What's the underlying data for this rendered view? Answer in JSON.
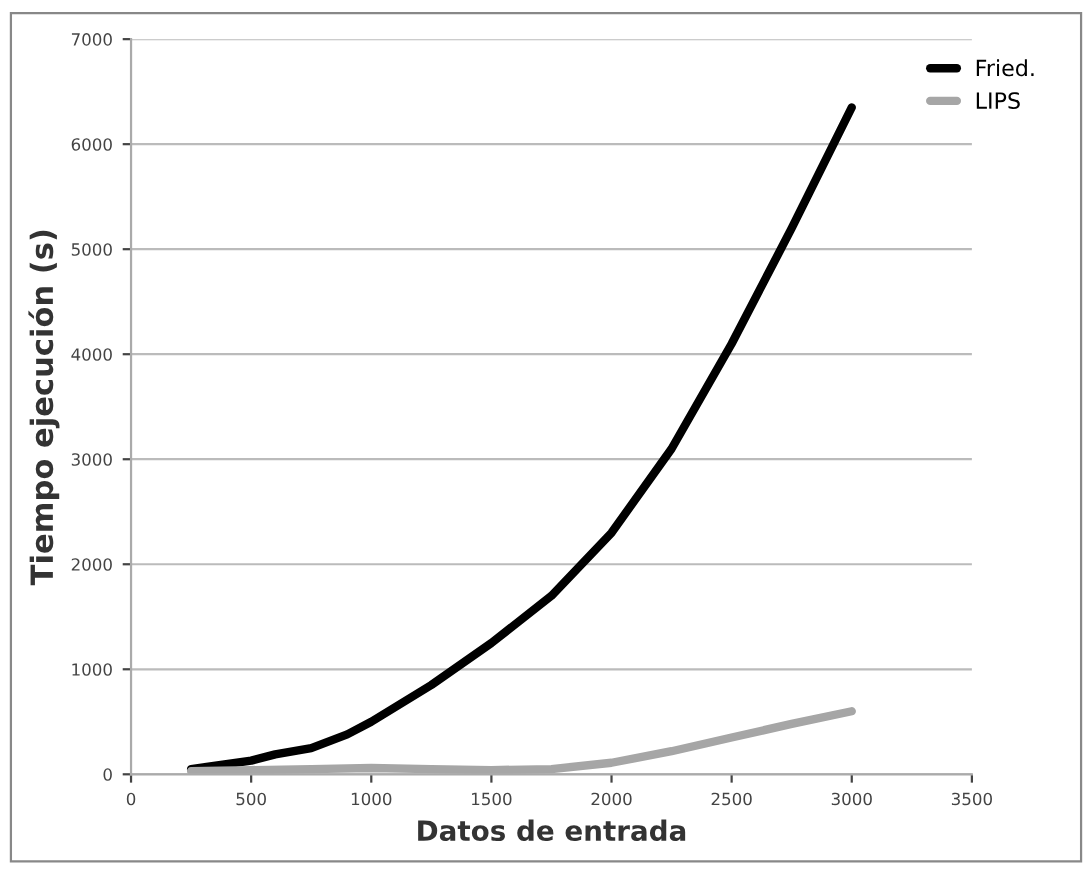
{
  "chart_data": {
    "type": "line",
    "xlabel": "Datos de entrada",
    "ylabel": "Tiempo ejecución (s)",
    "xlim": [
      0,
      3500
    ],
    "xticks": [
      0,
      500,
      1000,
      1500,
      2000,
      2500,
      3000,
      3500
    ],
    "ylim": [
      0,
      7000
    ],
    "yticks": [
      0,
      1000,
      2000,
      3000,
      4000,
      5000,
      6000,
      7000
    ],
    "grid": "y",
    "legend": "top right",
    "marker": "none",
    "line_style": "solid",
    "series": [
      {
        "name": "Fried.",
        "color": "#000000",
        "x": [
          250,
          500,
          600,
          750,
          900,
          1000,
          1250,
          1500,
          1750,
          2000,
          2250,
          2500,
          2750,
          3000
        ],
        "values": [
          50,
          130,
          190,
          250,
          380,
          500,
          850,
          1250,
          1700,
          2300,
          3100,
          4100,
          5200,
          6350
        ]
      },
      {
        "name": "LIPS",
        "color": "#a6a6a6",
        "x": [
          250,
          500,
          750,
          1000,
          1250,
          1500,
          1750,
          2000,
          2250,
          2500,
          2750,
          3000
        ],
        "values": [
          30,
          40,
          50,
          60,
          50,
          40,
          50,
          110,
          220,
          350,
          480,
          600
        ]
      }
    ]
  }
}
